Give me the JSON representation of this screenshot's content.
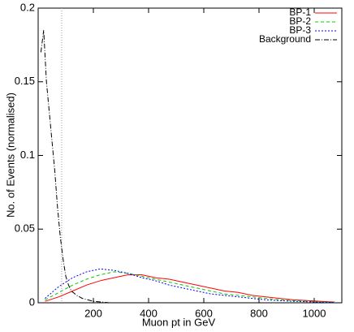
{
  "chart_data": {
    "type": "line",
    "x_label": "Muon pt in GeV",
    "y_label": "No. of Events (normalised)",
    "xlim": [
      0,
      1100
    ],
    "ylim": [
      0,
      0.2
    ],
    "xticks": [
      200,
      400,
      600,
      800,
      1000
    ],
    "yticks": [
      0,
      0.05,
      0.1,
      0.15,
      0.2
    ],
    "legend": "top-right",
    "vline": 85,
    "series": [
      {
        "name": "BP-1",
        "color": "#ff0000",
        "dash": "none",
        "x": [
          25,
          75,
          125,
          175,
          225,
          275,
          325,
          375,
          425,
          475,
          525,
          575,
          625,
          675,
          725,
          775,
          825,
          875,
          925,
          975,
          1025,
          1075
        ],
        "values": [
          0.001,
          0.004,
          0.008,
          0.012,
          0.015,
          0.017,
          0.019,
          0.019,
          0.017,
          0.016,
          0.014,
          0.012,
          0.01,
          0.008,
          0.007,
          0.005,
          0.004,
          0.003,
          0.002,
          0.0015,
          0.001,
          0.0005
        ]
      },
      {
        "name": "BP-2",
        "color": "#00cc00",
        "dash": "4 3",
        "x": [
          25,
          75,
          125,
          175,
          225,
          275,
          325,
          375,
          425,
          475,
          525,
          575,
          625,
          675,
          725,
          775,
          825,
          875,
          925,
          975,
          1025,
          1075
        ],
        "values": [
          0.002,
          0.007,
          0.012,
          0.016,
          0.019,
          0.021,
          0.02,
          0.018,
          0.016,
          0.014,
          0.012,
          0.01,
          0.008,
          0.006,
          0.005,
          0.004,
          0.003,
          0.002,
          0.0015,
          0.001,
          0.0005,
          0.0003
        ]
      },
      {
        "name": "BP-3",
        "color": "#0000ff",
        "dash": "2 2",
        "x": [
          25,
          75,
          125,
          175,
          225,
          275,
          325,
          375,
          425,
          475,
          525,
          575,
          625,
          675,
          725,
          775,
          825,
          875,
          925,
          975,
          1025,
          1075
        ],
        "values": [
          0.003,
          0.011,
          0.017,
          0.021,
          0.023,
          0.022,
          0.02,
          0.017,
          0.015,
          0.012,
          0.01,
          0.008,
          0.006,
          0.005,
          0.004,
          0.003,
          0.002,
          0.0015,
          0.001,
          0.0007,
          0.0004,
          0.0002
        ]
      },
      {
        "name": "Background",
        "color": "#000000",
        "dash": "6 2 1 2",
        "x": [
          10,
          20,
          30,
          40,
          50,
          60,
          70,
          80,
          90,
          100,
          110,
          120,
          140,
          160,
          180,
          200,
          230,
          260
        ],
        "values": [
          0.17,
          0.185,
          0.15,
          0.13,
          0.11,
          0.09,
          0.065,
          0.045,
          0.03,
          0.018,
          0.012,
          0.008,
          0.005,
          0.003,
          0.002,
          0.001,
          0.0005,
          0
        ]
      }
    ]
  }
}
